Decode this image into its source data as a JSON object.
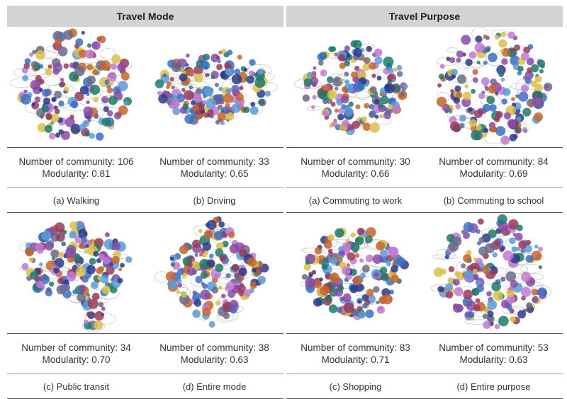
{
  "panels": [
    {
      "title": "Travel Mode",
      "items": [
        {
          "community": "Number of community: 106",
          "modularity": "Modularity: 0.81",
          "caption": "(a) Walking"
        },
        {
          "community": "Number of community: 33",
          "modularity": "Modularity: 0.65",
          "caption": "(b) Driving"
        },
        {
          "community": "Number of community: 34",
          "modularity": "Modularity: 0.70",
          "caption": "(c) Public transit"
        },
        {
          "community": "Number of community: 38",
          "modularity": "Modularity: 0.63",
          "caption": "(d) Entire mode"
        }
      ]
    },
    {
      "title": "Travel Purpose",
      "items": [
        {
          "community": "Number of community: 30",
          "modularity": "Modularity: 0.66",
          "caption": "(a) Commuting to work"
        },
        {
          "community": "Number of community: 84",
          "modularity": "Modularity: 0.69",
          "caption": "(b) Commuting to school"
        },
        {
          "community": "Number of community: 83",
          "modularity": "Modularity: 0.71",
          "caption": "(c) Shopping"
        },
        {
          "community": "Number of community: 53",
          "modularity": "Modularity: 0.63",
          "caption": "(d) Entire purpose"
        }
      ]
    }
  ],
  "palette": [
    "#2b3a8c",
    "#3b6fc4",
    "#5a9bd8",
    "#1f7a6a",
    "#8a4aa8",
    "#c07ad0",
    "#d8c04a",
    "#c8652a",
    "#6a6a8a",
    "#9a3a5a"
  ]
}
